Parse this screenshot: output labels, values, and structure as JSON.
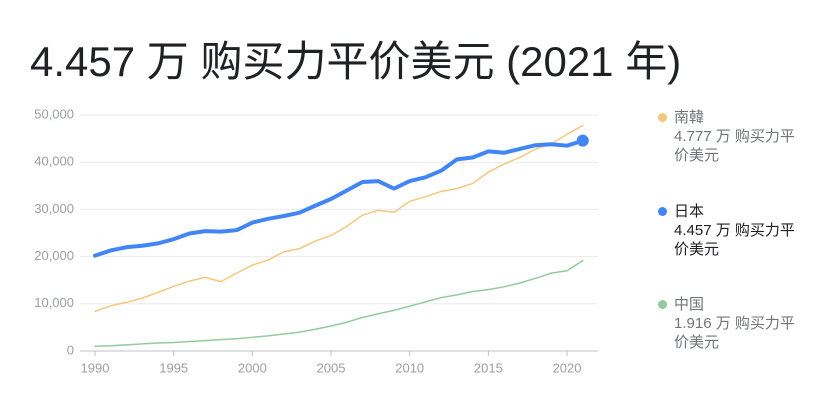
{
  "chart_data": {
    "type": "line",
    "title": "4.457 万 购买力平价美元 (2021 年)",
    "x": [
      1990,
      1991,
      1992,
      1993,
      1994,
      1995,
      1996,
      1997,
      1998,
      1999,
      2000,
      2001,
      2002,
      2003,
      2004,
      2005,
      2006,
      2007,
      2008,
      2009,
      2010,
      2011,
      2012,
      2013,
      2014,
      2015,
      2016,
      2017,
      2018,
      2019,
      2020,
      2021
    ],
    "series": [
      {
        "name": "南韓",
        "color": "#f7c67e",
        "width": 1.5,
        "value_label": "4.777 万 购买力平价美元",
        "values": [
          8400,
          9600,
          10300,
          11200,
          12400,
          13700,
          14800,
          15600,
          14700,
          16500,
          18200,
          19300,
          21000,
          21700,
          23300,
          24500,
          26400,
          28800,
          29800,
          29400,
          31700,
          32700,
          33800,
          34400,
          35500,
          37900,
          39600,
          41000,
          42800,
          43900,
          45900,
          47770
        ]
      },
      {
        "name": "日本",
        "color": "#4285f4",
        "width": 4,
        "highlight": true,
        "value_label": "4.457 万 购买力平价美元",
        "values": [
          20200,
          21300,
          22000,
          22300,
          22800,
          23700,
          24900,
          25400,
          25300,
          25600,
          27200,
          28000,
          28600,
          29300,
          30800,
          32200,
          34000,
          35800,
          36000,
          34400,
          36000,
          36800,
          38200,
          40600,
          41000,
          42300,
          42000,
          42800,
          43600,
          43800,
          43500,
          44570
        ]
      },
      {
        "name": "中国",
        "color": "#93cb9f",
        "width": 1.5,
        "value_label": "1.916 万 购买力平价美元",
        "values": [
          1000,
          1100,
          1300,
          1500,
          1700,
          1800,
          2000,
          2200,
          2400,
          2600,
          2900,
          3200,
          3600,
          4000,
          4600,
          5300,
          6100,
          7100,
          7900,
          8600,
          9500,
          10400,
          11300,
          11900,
          12600,
          13000,
          13600,
          14400,
          15400,
          16500,
          17000,
          19160
        ]
      }
    ],
    "xlim": [
      1989,
      2022
    ],
    "xticks": [
      1990,
      1995,
      2000,
      2005,
      2010,
      2015,
      2020
    ],
    "ylim": [
      0,
      50000
    ],
    "yticks": [
      0,
      {
        "value": 10000,
        "label": "10,000"
      },
      {
        "value": 20000,
        "label": "20,000"
      },
      {
        "value": 30000,
        "label": "30,000"
      },
      {
        "value": 40000,
        "label": "40,000"
      },
      {
        "value": 50000,
        "label": "50,000"
      }
    ],
    "grid": true
  }
}
